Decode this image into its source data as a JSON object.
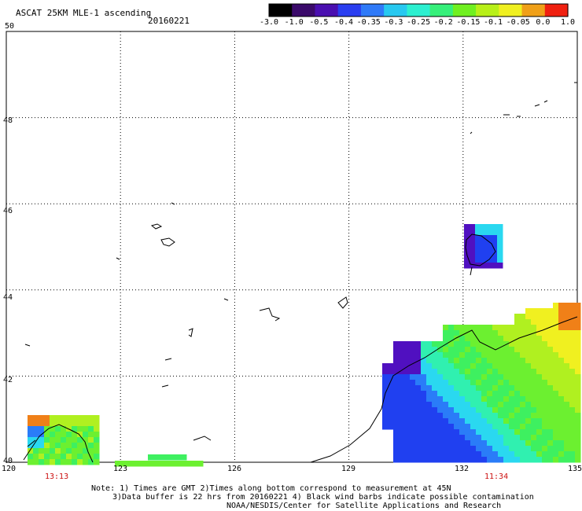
{
  "header": {
    "product": "ASCAT 25KM MLE-1 ascending",
    "date": "20160221"
  },
  "colorbar": {
    "labels": [
      "-3.0",
      "-1.0",
      "-0.5",
      "-0.4",
      "-0.35",
      "-0.3",
      "-0.25",
      "-0.2",
      "-0.15",
      "-0.1",
      "-0.05",
      "0.0",
      "1.0"
    ],
    "colors": [
      "#000000",
      "#3a0a6a",
      "#4a0fb0",
      "#2a3ef0",
      "#2f7af8",
      "#27c8f0",
      "#2cf0d0",
      "#36f07a",
      "#70f020",
      "#b8f018",
      "#f0f020",
      "#f0a018",
      "#f02010"
    ]
  },
  "map": {
    "lat_labels": [
      "50",
      "48",
      "46",
      "44",
      "42",
      "40"
    ],
    "lon_labels": [
      "120",
      "123",
      "126",
      "129",
      "132",
      "135"
    ],
    "pass_times": [
      "13:13",
      "11:34"
    ],
    "field_colors": {
      "purple": "#5010c0",
      "blue": "#2040f0",
      "lightblue": "#2a7cf8",
      "cyan": "#2ad8f0",
      "teal": "#30f0b0",
      "green": "#3ef060",
      "lime": "#6cf030",
      "yellowgreen": "#b0f020",
      "yellow": "#f0f020",
      "orange": "#f08018"
    }
  },
  "notes": {
    "line1": "Note: 1) Times are GMT 2)Times along bottom correspond to measurement at 45N",
    "line2": "3)Data buffer is 22 hrs from 20160221 4) Black wind barbs indicate possible contamination",
    "line3": "NOAA/NESDIS/Center for Satellite Applications and Research"
  }
}
